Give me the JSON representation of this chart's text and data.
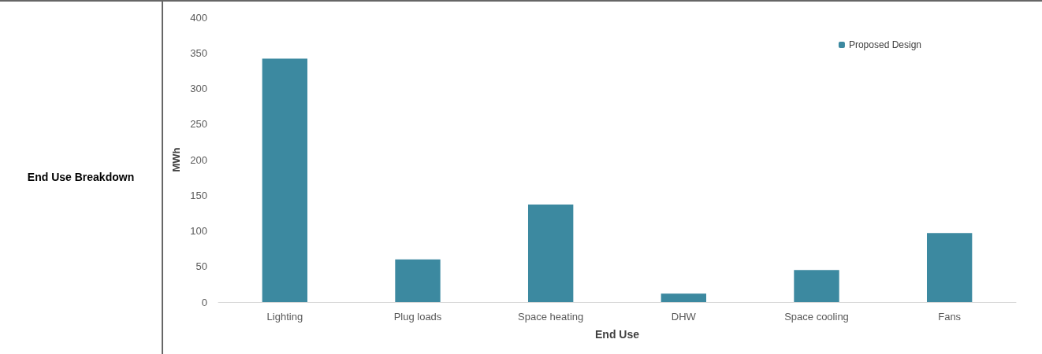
{
  "chart_data": {
    "type": "bar",
    "title": "End Use Breakdown",
    "xlabel": "End Use",
    "ylabel": "MWh",
    "categories": [
      "Lighting",
      "Plug loads",
      "Space heating",
      "DHW",
      "Space cooling",
      "Fans"
    ],
    "series": [
      {
        "name": "Proposed Design",
        "color": "#3c89a0",
        "values": [
          342,
          60,
          137,
          12,
          45,
          97
        ]
      }
    ],
    "ylim": [
      0,
      400
    ],
    "yticks": [
      0,
      50,
      100,
      150,
      200,
      250,
      300,
      350,
      400
    ],
    "grid": false,
    "legend": "top right"
  }
}
